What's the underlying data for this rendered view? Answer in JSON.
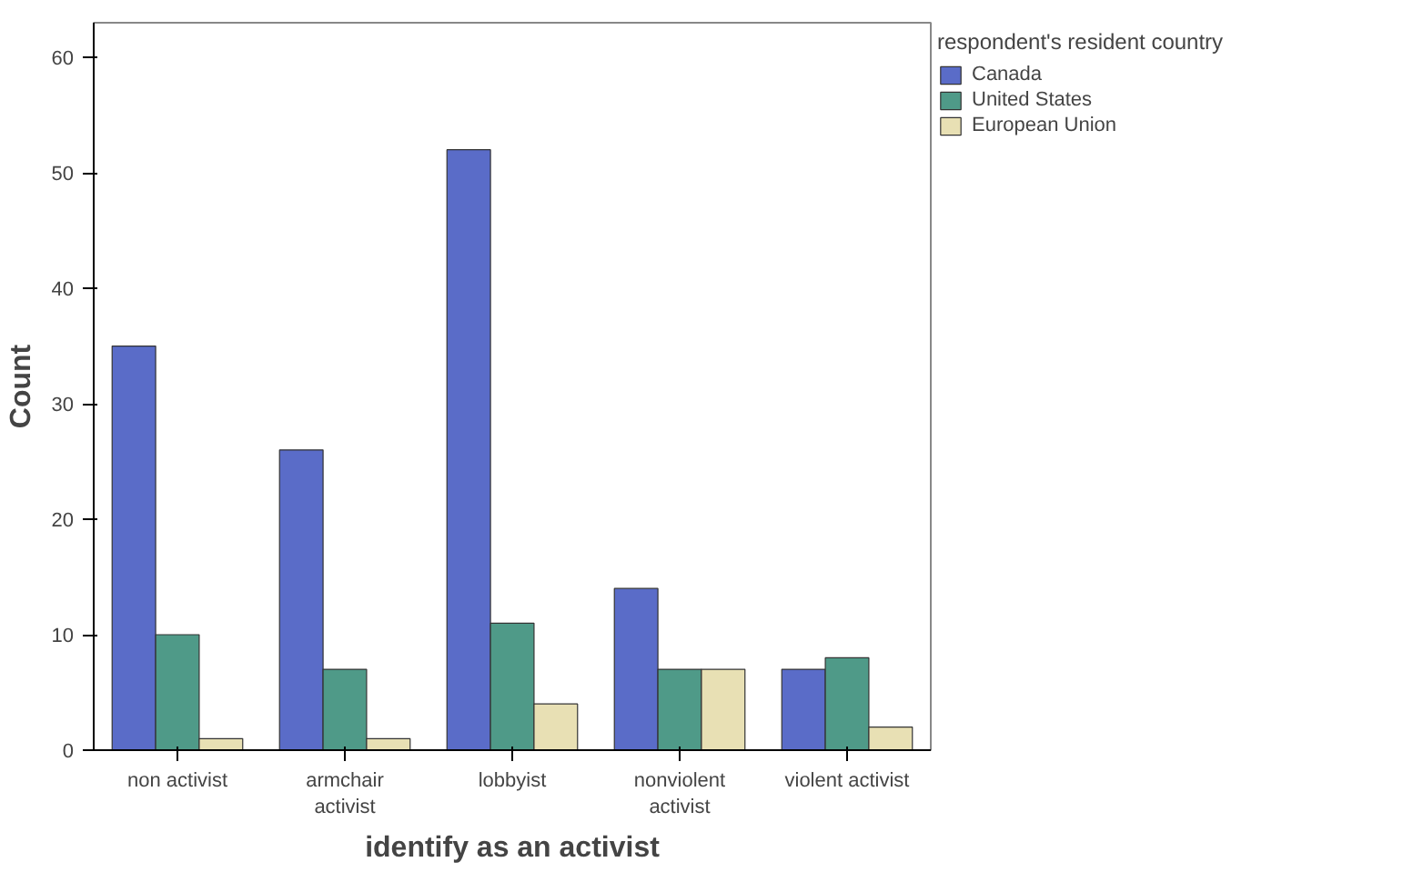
{
  "chart_data": {
    "type": "bar",
    "xlabel": "identify as an activist",
    "ylabel": "Count",
    "legend_title": "respondent's resident country",
    "categories": [
      "non activist",
      "armchair\nactivist",
      "lobbyist",
      "nonviolent\nactivist",
      "violent activist"
    ],
    "series": [
      {
        "name": "Canada",
        "color": "#5a6cc8",
        "values": [
          35,
          26,
          52,
          14,
          7
        ]
      },
      {
        "name": "United States",
        "color": "#4f9a88",
        "values": [
          10,
          7,
          11,
          7,
          8
        ]
      },
      {
        "name": "European Union",
        "color": "#e8e0b4",
        "values": [
          1,
          1,
          4,
          7,
          2
        ]
      }
    ],
    "ylim": [
      0,
      63
    ],
    "yticks": [
      0,
      10,
      20,
      30,
      40,
      50,
      60
    ],
    "grid": false,
    "legend": "right"
  }
}
